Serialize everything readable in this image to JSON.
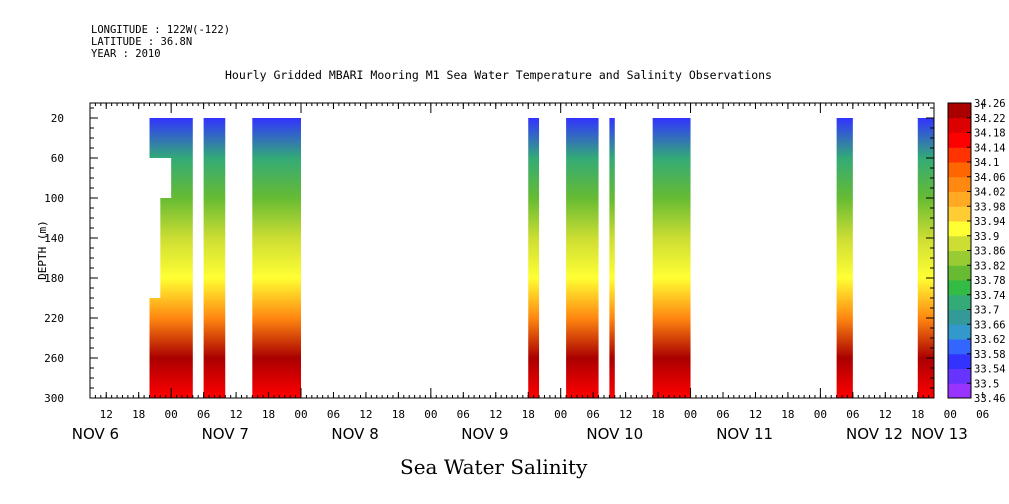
{
  "header": {
    "longitude": "LONGITUDE : 122W(-122)",
    "latitude": "LATITUDE : 36.8N",
    "year": "YEAR : 2010"
  },
  "chart_data": {
    "type": "heatmap",
    "title": "Hourly Gridded MBARI Mooring M1 Sea Water Temperature and Salinity Observations",
    "xlabel": "Sea Water Salinity",
    "ylabel": "DEPTH (m)",
    "x_hour_ticks": [
      "12",
      "18",
      "00",
      "06",
      "12",
      "18",
      "00",
      "06",
      "12",
      "18",
      "00",
      "06",
      "12",
      "18",
      "00",
      "06",
      "12",
      "18",
      "00",
      "06",
      "12",
      "18",
      "00",
      "06",
      "12",
      "18",
      "00",
      "06"
    ],
    "x_day_labels": [
      "NOV  6",
      "NOV  7",
      "NOV  8",
      "NOV  9",
      "NOV 10",
      "NOV 11",
      "NOV 12",
      "NOV 13"
    ],
    "x_range_hours_from_nov6_00": [
      9,
      165
    ],
    "y_ticks": [
      20,
      60,
      100,
      140,
      180,
      220,
      260,
      300
    ],
    "ylim": [
      300,
      5
    ],
    "colorbar_labels": [
      "34.26",
      "34.22",
      "34.18",
      "34.14",
      "34.1",
      "34.06",
      "34.02",
      "33.98",
      "33.94",
      "33.9",
      "33.86",
      "33.82",
      "33.78",
      "33.74",
      "33.7",
      "33.66",
      "33.62",
      "33.58",
      "33.54",
      "33.5",
      "33.46"
    ],
    "colorbar_range": [
      33.46,
      34.26
    ],
    "colorbar_colors": [
      "#9933ff",
      "#6633ff",
      "#3333ff",
      "#3366ff",
      "#3399cc",
      "#339999",
      "#33aa77",
      "#33bb44",
      "#66bb33",
      "#99cc33",
      "#ccdd33",
      "#ffff33",
      "#ffcc33",
      "#ffaa22",
      "#ff8811",
      "#ff6600",
      "#ff3300",
      "#ff0000",
      "#dd0000",
      "#aa0000"
    ],
    "depth_profile": {
      "depths": [
        20,
        60,
        100,
        140,
        180,
        220,
        260,
        300
      ],
      "salinity": [
        33.55,
        33.7,
        33.78,
        33.86,
        33.92,
        34.04,
        34.22,
        34.14
      ]
    },
    "data_segments_hours": [
      {
        "start": 20,
        "end": 28,
        "note": "missing 20-200 m at hours 20-24"
      },
      {
        "start": 30,
        "end": 34
      },
      {
        "start": 39,
        "end": 48
      },
      {
        "start": 90,
        "end": 92
      },
      {
        "start": 97,
        "end": 103
      },
      {
        "start": 105,
        "end": 106
      },
      {
        "start": 113,
        "end": 120
      },
      {
        "start": 147,
        "end": 150
      },
      {
        "start": 162,
        "end": 178
      }
    ]
  }
}
